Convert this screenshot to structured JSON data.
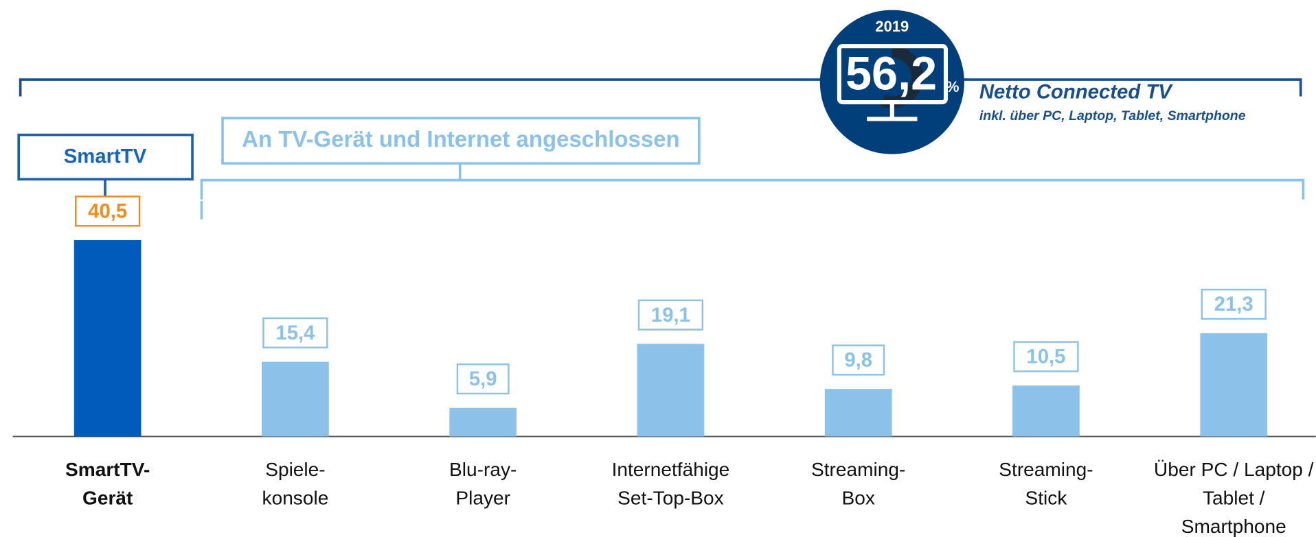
{
  "chart_data": {
    "type": "bar",
    "headline": {
      "year": "2019",
      "value": 56.2,
      "value_label": "56,2",
      "unit": "%",
      "title": "Netto Connected TV",
      "subtitle": "inkl. über PC, Laptop, Tablet, Smartphone"
    },
    "group_smart": "SmartTV",
    "group_connected": "An TV-Gerät und Internet angeschlossen",
    "categories": [
      [
        "SmartTV-",
        "Gerät"
      ],
      [
        "Spiele-",
        "konsole"
      ],
      [
        "Blu-ray-",
        "Player"
      ],
      [
        "Internetfähige",
        "Set-Top-Box"
      ],
      [
        "Streaming-",
        "Box"
      ],
      [
        "Streaming-",
        "Stick"
      ],
      [
        "Über PC / Laptop /",
        "Tablet /",
        "Smartphone"
      ]
    ],
    "values": [
      40.5,
      15.4,
      5.9,
      19.1,
      9.8,
      10.5,
      21.3
    ],
    "value_labels": [
      "40,5",
      "15,4",
      "5,9",
      "19,1",
      "9,8",
      "10,5",
      "21,3"
    ],
    "colors": [
      "#005bbb",
      "#8cc1ea",
      "#8cc1ea",
      "#8cc1ea",
      "#8cc1ea",
      "#8cc1ea",
      "#8cc1ea"
    ],
    "label_colors": [
      "#f28c1e",
      "#8cc1ea",
      "#8cc1ea",
      "#8cc1ea",
      "#8cc1ea",
      "#8cc1ea",
      "#8cc1ea"
    ],
    "ylim": [
      0,
      90
    ]
  }
}
